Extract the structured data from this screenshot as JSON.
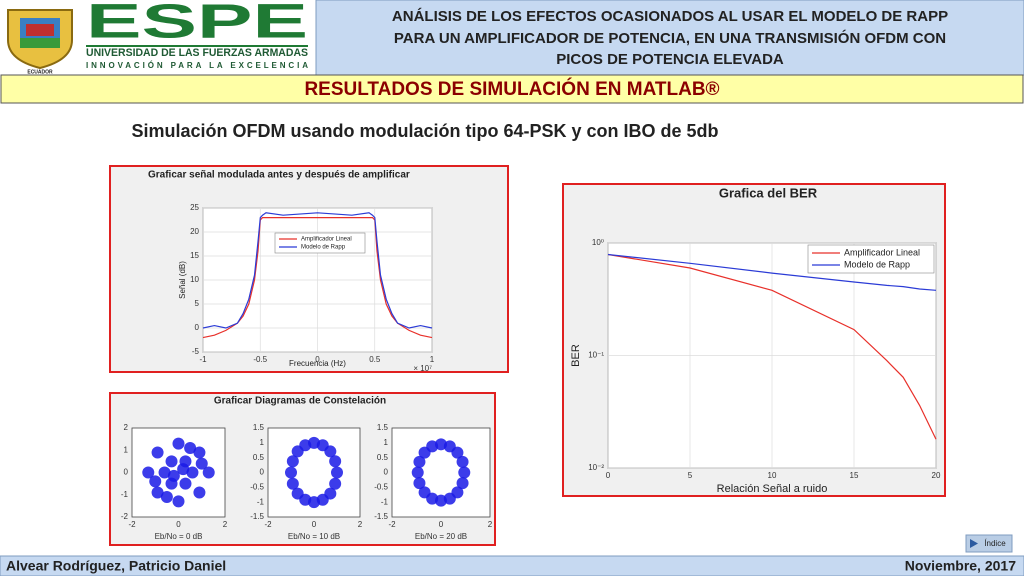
{
  "logo": {
    "name": "ESPE",
    "university": "UNIVERSIDAD DE LAS FUERZAS ARMADAS",
    "motto": "INNOVACIÓN PARA LA EXCELENCIA",
    "crest_label": "ECUADOR"
  },
  "header": {
    "title_lines": [
      "ANÁLISIS DE LOS EFECTOS OCASIONADOS AL USAR EL MODELO DE RAPP",
      "PARA UN AMPLIFICADOR DE POTENCIA, EN UNA TRANSMISIÓN OFDM CON",
      "PICOS DE POTENCIA ELEVADA"
    ]
  },
  "banner": "RESULTADOS DE SIMULACIÓN EN MATLAB®",
  "subtitle": "Simulación OFDM usando modulación tipo 64-PSK y con IBO de 5db",
  "chart_data": [
    {
      "type": "line",
      "title": "Graficar señal modulada antes y después de amplificar",
      "xlabel": "Frecuencia (Hz)",
      "ylabel": "Señal (dB)",
      "x_multiplier": "× 10⁷",
      "x": [
        -1,
        -0.9,
        -0.8,
        -0.7,
        -0.65,
        -0.6,
        -0.55,
        -0.52,
        -0.5,
        -0.48,
        -0.45,
        -0.3,
        0,
        0.3,
        0.45,
        0.48,
        0.5,
        0.52,
        0.55,
        0.6,
        0.65,
        0.7,
        0.8,
        0.9,
        1
      ],
      "series": [
        {
          "name": "Amplificador Lineal",
          "color": "#e8302a",
          "values": [
            -2,
            -1.5,
            -0.5,
            1,
            2.5,
            5,
            10,
            16,
            22.5,
            23,
            23,
            23,
            23,
            23,
            23,
            23,
            22.5,
            16,
            10,
            5,
            2.5,
            1,
            -0.5,
            -1.5,
            -2
          ]
        },
        {
          "name": "Modelo de Rapp",
          "color": "#2b3bd6",
          "values": [
            0,
            0.5,
            0,
            1,
            3,
            6,
            11,
            18,
            23,
            23.5,
            24,
            23.5,
            24,
            23.5,
            24,
            23.5,
            23,
            18,
            11,
            6,
            3,
            1,
            0,
            0.5,
            0
          ]
        }
      ],
      "xlim": [
        -1,
        1
      ],
      "xticks": [
        -1,
        -0.5,
        0,
        0.5,
        1
      ],
      "ylim": [
        -5,
        25
      ],
      "yticks": [
        -5,
        0,
        5,
        10,
        15,
        20,
        25
      ],
      "grid": true,
      "legend": "top-left"
    },
    {
      "type": "scatter",
      "title": "Graficar Diagramas de Constelación",
      "color": "#1a1ae6",
      "panels": [
        {
          "xlabel": "Eb/No = 0 dB",
          "xlim": [
            -2,
            2
          ],
          "xticks": [
            -2,
            0,
            2
          ],
          "ylim": [
            -2,
            2
          ],
          "yticks": [
            -2,
            -1,
            0,
            1,
            2
          ],
          "x": [
            1.3,
            0.9,
            0,
            -0.9,
            -1.3,
            -0.9,
            0,
            0.9,
            0.6,
            0.3,
            -0.3,
            -0.6,
            -0.3,
            0.3,
            1.0,
            -1.0,
            0.5,
            -0.5,
            0.2,
            -0.2
          ],
          "y": [
            0,
            0.9,
            1.3,
            0.9,
            0,
            -0.9,
            -1.3,
            -0.9,
            0,
            0.5,
            0.5,
            0,
            -0.5,
            -0.5,
            0.4,
            -0.4,
            1.1,
            -1.1,
            0.15,
            -0.15
          ]
        },
        {
          "xlabel": "Eb/No = 10 dB",
          "xlim": [
            -2,
            2
          ],
          "xticks": [
            -2,
            0,
            2
          ],
          "ylim": [
            -1.5,
            1.5
          ],
          "yticks": [
            -1.5,
            -1,
            -0.5,
            0,
            0.5,
            1,
            1.5
          ],
          "x": [
            1,
            0.92,
            0.71,
            0.38,
            0,
            -0.38,
            -0.71,
            -0.92,
            -1,
            -0.92,
            -0.71,
            -0.38,
            0,
            0.38,
            0.71,
            0.92
          ],
          "y": [
            0,
            0.38,
            0.71,
            0.92,
            1,
            0.92,
            0.71,
            0.38,
            0,
            -0.38,
            -0.71,
            -0.92,
            -1,
            -0.92,
            -0.71,
            -0.38
          ]
        },
        {
          "xlabel": "Eb/No = 20 dB",
          "xlim": [
            -2,
            2
          ],
          "xticks": [
            -2,
            0,
            2
          ],
          "ylim": [
            -1.5,
            1.5
          ],
          "yticks": [
            -1.5,
            -1,
            -0.5,
            0,
            0.5,
            1,
            1.5
          ],
          "x": [
            0.95,
            0.88,
            0.67,
            0.36,
            0,
            -0.36,
            -0.67,
            -0.88,
            -0.95,
            -0.88,
            -0.67,
            -0.36,
            0,
            0.36,
            0.67,
            0.88
          ],
          "y": [
            0,
            0.36,
            0.67,
            0.88,
            0.95,
            0.88,
            0.67,
            0.36,
            0,
            -0.36,
            -0.67,
            -0.88,
            -0.95,
            -0.88,
            -0.67,
            -0.36
          ]
        }
      ]
    },
    {
      "type": "line",
      "title": "Grafica del BER",
      "xlabel": "Relación Señal a ruido",
      "ylabel": "BER",
      "log_y": true,
      "x": [
        0,
        5,
        10,
        15,
        17,
        18,
        19,
        20
      ],
      "series": [
        {
          "name": "Amplificador Lineal",
          "color": "#e8302a",
          "values": [
            0.79,
            0.6,
            0.38,
            0.17,
            0.09,
            0.064,
            0.036,
            0.018
          ]
        },
        {
          "name": "Modelo de Rapp",
          "color": "#2b3bd6",
          "values": [
            0.79,
            0.66,
            0.54,
            0.45,
            0.42,
            0.41,
            0.39,
            0.38
          ]
        }
      ],
      "xlim": [
        0,
        20
      ],
      "xticks": [
        0,
        5,
        10,
        15,
        20
      ],
      "ylim": [
        0.01,
        1
      ],
      "yticks": [
        {
          "value": 0.01,
          "label": "10⁻²"
        },
        {
          "value": 0.1,
          "label": "10⁻¹"
        },
        {
          "value": 1,
          "label": "10⁰"
        }
      ],
      "grid": true,
      "legend": "top-right"
    }
  ],
  "nav_button": "Índice",
  "footer": {
    "author": "Alvear Rodríguez, Patricio Daniel",
    "date": "Noviembre, 2017"
  }
}
